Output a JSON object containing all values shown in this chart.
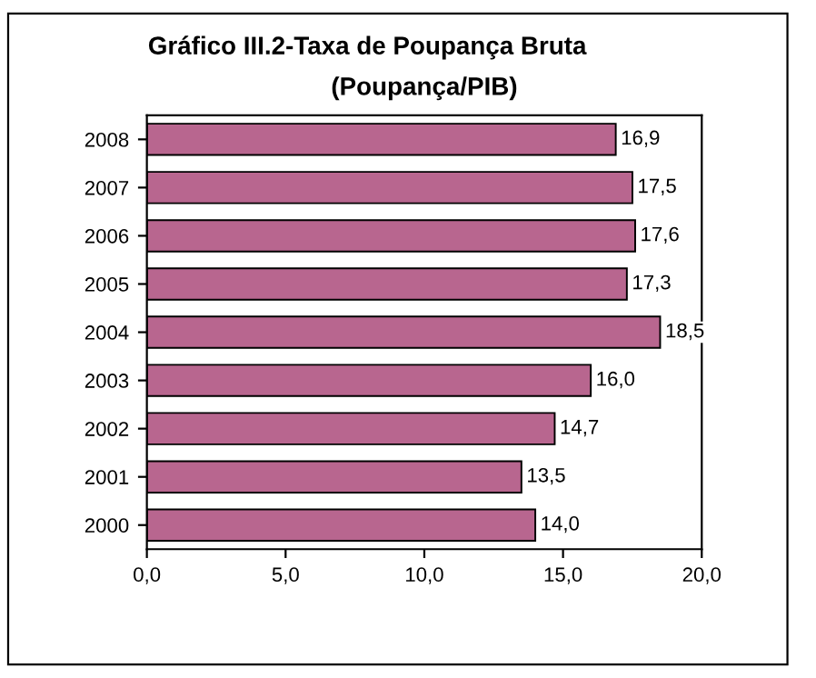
{
  "chart_data": {
    "type": "bar",
    "orientation": "horizontal",
    "title": "Gráfico III.2-Taxa de Poupança Bruta",
    "subtitle": "(Poupança/PIB)",
    "categories": [
      "2008",
      "2007",
      "2006",
      "2005",
      "2004",
      "2003",
      "2002",
      "2001",
      "2000"
    ],
    "values": [
      16.9,
      17.5,
      17.6,
      17.3,
      18.5,
      16.0,
      14.7,
      13.5,
      14.0
    ],
    "value_labels": [
      "16,9",
      "17,5",
      "17,6",
      "17,3",
      "18,5",
      "16,0",
      "14,7",
      "13,5",
      "14,0"
    ],
    "color": "#b8668f",
    "xlim": [
      0,
      20
    ],
    "xticks": [
      {
        "value": 0,
        "label": "0,0"
      },
      {
        "value": 5,
        "label": "5,0"
      },
      {
        "value": 10,
        "label": "10,0"
      },
      {
        "value": 15,
        "label": "15,0"
      },
      {
        "value": 20,
        "label": "20,0"
      }
    ],
    "grid": false,
    "legend": false
  }
}
